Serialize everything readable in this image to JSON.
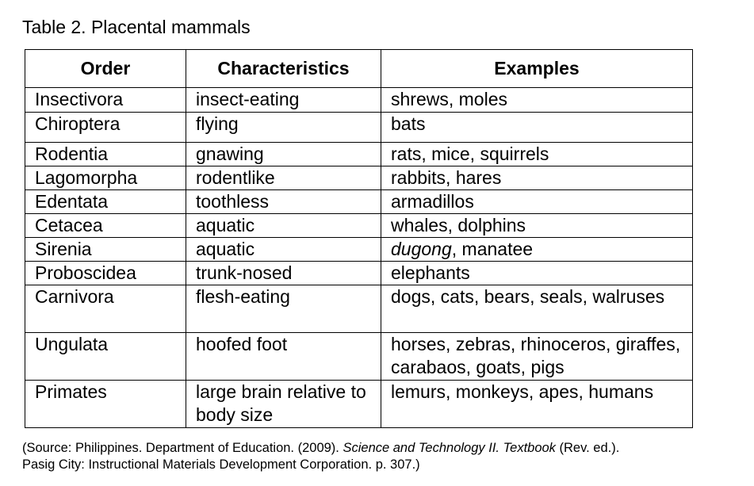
{
  "caption": "Table 2.  Placental mammals",
  "table": {
    "headers": [
      "Order",
      "Characteristics",
      "Examples"
    ],
    "rows": [
      {
        "order": "Insectivora",
        "characteristics": "insect-eating",
        "examples": "shrews, moles"
      },
      {
        "order": "Chiroptera",
        "characteristics": "flying",
        "examples": "bats"
      },
      {
        "order": "Rodentia",
        "characteristics": "gnawing",
        "examples": "rats, mice, squirrels"
      },
      {
        "order": "Lagomorpha",
        "characteristics": "rodentlike",
        "examples": "rabbits, hares"
      },
      {
        "order": "Edentata",
        "characteristics": "toothless",
        "examples": "armadillos"
      },
      {
        "order": "Cetacea",
        "characteristics": "aquatic",
        "examples": "whales, dolphins"
      },
      {
        "order": "Sirenia",
        "characteristics": "aquatic",
        "examples_italic": "dugong",
        "examples_rest": ", manatee"
      },
      {
        "order": "Proboscidea",
        "characteristics": "trunk-nosed",
        "examples": "elephants"
      },
      {
        "order": "Carnivora",
        "characteristics": "flesh-eating",
        "examples": "dogs, cats, bears, seals, walruses"
      },
      {
        "order": "Ungulata",
        "characteristics": "hoofed foot",
        "examples": "horses, zebras, rhinoceros, giraffes, carabaos, goats, pigs"
      },
      {
        "order": "Primates",
        "characteristics": "large brain relative to body size",
        "examples": "lemurs, monkeys, apes, humans"
      }
    ]
  },
  "source": {
    "prefix": "(Source: Philippines. Department of Education. (2009). ",
    "title_italic": "Science and Technology II. Textbook",
    "middle": " (Rev. ed.).",
    "line2": "Pasig City: Instructional Materials Development Corporation. p. 307.)"
  }
}
